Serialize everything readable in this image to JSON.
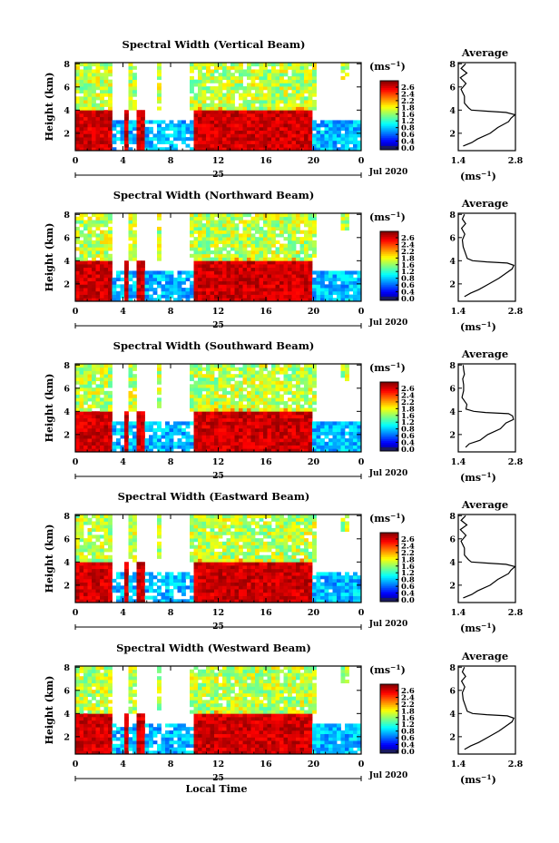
{
  "chart_data": {
    "type": "heatmap",
    "shared": {
      "xlabel": "Local Time",
      "ylabel": "Height (km)",
      "x_ticks": [
        "0",
        "4",
        "8",
        "12",
        "16",
        "20",
        "0"
      ],
      "date_day": "25",
      "date_label": "Jul 2020",
      "y_ticks": [
        "2",
        "4",
        "6",
        "8"
      ],
      "xlim_hours": [
        0,
        24
      ],
      "ylim_km": [
        0.5,
        8.1
      ],
      "colorbar": {
        "unit_prefix": "(ms",
        "unit_exp": "−1",
        "unit_suffix": ")",
        "range": [
          0.0,
          2.8
        ],
        "tick_labels": [
          "2.6",
          "2.4",
          "2.2",
          "1.8",
          "1.6",
          "1.2",
          "0.8",
          "0.6",
          "0.4",
          "0.0"
        ],
        "colors": [
          "#00008f",
          "#0000ff",
          "#0080ff",
          "#00ffff",
          "#80ff80",
          "#ffff00",
          "#ff8000",
          "#ff0000",
          "#c80000"
        ]
      },
      "average": {
        "title": "Average",
        "xlim": [
          1.4,
          2.8
        ],
        "x_ticks": [
          "1.4",
          "2.8"
        ],
        "y_ticks": [
          "2",
          "4",
          "6",
          "8"
        ],
        "xlabel_prefix": "(ms",
        "xlabel_exp": "−1",
        "xlabel_suffix": ")",
        "height_km": [
          0.9,
          1.2,
          1.5,
          2.0,
          2.5,
          3.0,
          3.3,
          3.6,
          3.8,
          3.9,
          4.0,
          4.2,
          4.6,
          5.2,
          5.8,
          6.3,
          6.8,
          7.2,
          7.6,
          8.0
        ],
        "width_ms": [
          1.55,
          1.7,
          1.9,
          2.15,
          2.4,
          2.6,
          2.72,
          2.76,
          2.6,
          2.1,
          1.75,
          1.62,
          1.58,
          1.52,
          1.5,
          1.56,
          1.48,
          1.58,
          1.5,
          1.55
        ]
      }
    },
    "panels": [
      {
        "title": "Spectral Width (Vertical Beam)"
      },
      {
        "title": "Spectral Width (Northward Beam)"
      },
      {
        "title": "Spectral Width (Southward Beam)"
      },
      {
        "title": "Spectral Width (Eastward Beam)"
      },
      {
        "title": "Spectral Width (Westward Beam)"
      }
    ]
  }
}
